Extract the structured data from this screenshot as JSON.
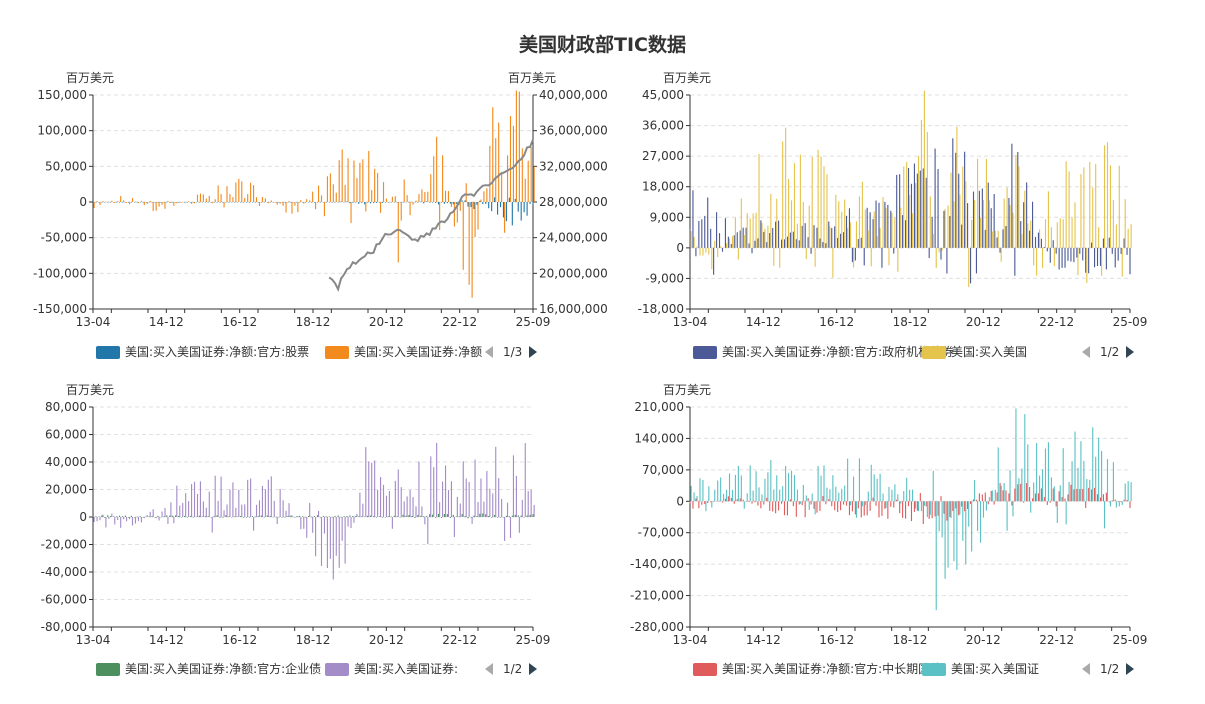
{
  "page_title": "美国财政部TIC数据",
  "chart_data": [
    {
      "type": "bar",
      "ylabel": "百万美元",
      "ylabel_right": "百万美元",
      "ylim": [
        -150000,
        150000
      ],
      "y_ticks": [
        -150000,
        -100000,
        -50000,
        0,
        50000,
        100000,
        150000
      ],
      "ylim_right": [
        16000000,
        40000000
      ],
      "y_ticks_right": [
        16000000,
        20000000,
        24000000,
        28000000,
        32000000,
        36000000,
        40000000
      ],
      "x_tick_labels": [
        "13-04",
        "14-12",
        "16-12",
        "18-12",
        "20-12",
        "22-12",
        "25-09"
      ],
      "x_range": [
        "2013-04",
        "2025-09"
      ],
      "legend": {
        "items": [
          "美国:买入美国证券:净额:官方:股票",
          "美国:买入美国证券:净额"
        ],
        "page": "1/3"
      },
      "series": [
        {
          "name": "美国:买入美国证券:净额:官方:股票",
          "color": "#2277aa",
          "values": {
            "2013-04": 0,
            "2015-06": 0,
            "2018-06": 0,
            "2019-12": 0,
            "2020-12": -3000,
            "2021-09": 0,
            "2022-06": -1000,
            "2023-06": -5000,
            "2024-06": -10000,
            "2025-01": -25000,
            "2025-04": -30000,
            "2025-09": -8000
          }
        },
        {
          "name": "美国:买入美国证券:净额",
          "color": "#f28a1e",
          "values": {
            "2013-04": -8000,
            "2014-03": 10000,
            "2014-12": -15000,
            "2016-12": 22000,
            "2017-06": 30000,
            "2018-12": -20000,
            "2020-03": 70000,
            "2020-12": 60000,
            "2021-06": 45000,
            "2021-12": -90000,
            "2022-06": 25000,
            "2022-12": 105000,
            "2023-06": -30000,
            "2023-12": -120000,
            "2024-06": 100000,
            "2024-12": 130000,
            "2025-06": 115000,
            "2025-09": 60000
          }
        },
        {
          "name": "line",
          "type": "line",
          "axis": "right",
          "color": "#888888",
          "values": {
            "2019-12": 19800000,
            "2020-03": 18500000,
            "2020-06": 20500000,
            "2020-12": 22000000,
            "2021-03": 22500000,
            "2021-06": 24000000,
            "2021-09": 24500000,
            "2021-12": 25000000,
            "2022-03": 24200000,
            "2022-06": 23800000,
            "2022-09": 24200000,
            "2022-12": 25000000,
            "2023-03": 26000000,
            "2023-06": 27000000,
            "2023-09": 28500000,
            "2023-12": 28700000,
            "2024-03": 29500000,
            "2024-06": 30000000,
            "2024-09": 31000000,
            "2024-12": 31500000,
            "2025-03": 32000000,
            "2025-06": 33500000,
            "2025-09": 34800000
          }
        }
      ]
    },
    {
      "type": "bar",
      "ylabel": "百万美元",
      "ylim": [
        -18000,
        45000
      ],
      "y_ticks": [
        -18000,
        -9000,
        0,
        9000,
        18000,
        27000,
        36000,
        45000
      ],
      "x_tick_labels": [
        "13-04",
        "14-12",
        "16-12",
        "18-12",
        "20-12",
        "22-12",
        "25-09"
      ],
      "x_range": [
        "2013-04",
        "2025-09"
      ],
      "legend": {
        "items": [
          "美国:买入美国证券:净额:官方:政府机构债券",
          "美国:买入美国"
        ],
        "page": "1/2"
      },
      "series": [
        {
          "name": "美国:买入美国证券:净额:官方:政府机构债券",
          "color": "#4c5a97",
          "values": {
            "2013-04": 16000,
            "2013-10": 20000,
            "2014-06": 5000,
            "2015-06": 7000,
            "2016-06": 6000,
            "2017-06": 7000,
            "2018-06": 14000,
            "2019-06": 22000,
            "2019-12": 25000,
            "2020-06": 29000,
            "2020-12": 27000,
            "2021-06": 20000,
            "2021-12": 15000,
            "2022-06": 27000,
            "2022-12": 12000,
            "2023-06": -5000,
            "2024-06": -6000,
            "2025-03": -8000,
            "2025-09": -6000
          }
        },
        {
          "name": "美国:买入美国",
          "color": "#e5c44e",
          "values": {
            "2013-04": 5000,
            "2013-10": -9000,
            "2014-06": 5000,
            "2014-12": 20000,
            "2015-06": 27000,
            "2016-06": 28000,
            "2017-06": 15000,
            "2018-06": 15000,
            "2019-06": 28000,
            "2019-12": 38000,
            "2020-03": -12000,
            "2020-09": 39000,
            "2021-06": 30000,
            "2021-12": 20000,
            "2022-06": 23000,
            "2022-12": 15000,
            "2023-06": 20000,
            "2024-06": 24000,
            "2025-03": 30000,
            "2025-09": 15000
          }
        }
      ]
    },
    {
      "type": "bar",
      "ylabel": "百万美元",
      "ylim": [
        -80000,
        80000
      ],
      "y_ticks": [
        -80000,
        -60000,
        -40000,
        -20000,
        0,
        20000,
        40000,
        60000,
        80000
      ],
      "x_tick_labels": [
        "13-04",
        "14-12",
        "16-12",
        "18-12",
        "20-12",
        "22-12",
        "25-09"
      ],
      "x_range": [
        "2013-04",
        "2025-09"
      ],
      "legend": {
        "items": [
          "美国:买入美国证券:净额:官方:企业债",
          "美国:买入美国证券:"
        ],
        "page": "1/2"
      },
      "series": [
        {
          "name": "美国:买入美国证券:净额:官方:企业债",
          "color": "#4d8f5e",
          "values": {
            "2013-04": 1000,
            "2015-06": 1000,
            "2018-06": 1000,
            "2021-06": 1000,
            "2023-06": 2000,
            "2025-09": 2000
          }
        },
        {
          "name": "美国:买入美国证券:",
          "color": "#a48cc9",
          "values": {
            "2013-04": -5000,
            "2014-06": -8000,
            "2015-06": 20000,
            "2016-06": 25000,
            "2017-06": 22000,
            "2018-06": 28000,
            "2019-06": -25000,
            "2019-12": -30000,
            "2020-03": -55000,
            "2020-06": -30000,
            "2020-12": 40000,
            "2021-06": 25000,
            "2021-12": 30000,
            "2022-06": 35000,
            "2022-12": 45000,
            "2023-06": 40000,
            "2024-06": 40000,
            "2024-12": 38000,
            "2025-03": 55000,
            "2025-09": 38000
          }
        }
      ]
    },
    {
      "type": "bar",
      "ylabel": "百万美元",
      "ylim": [
        -280000,
        210000
      ],
      "y_ticks": [
        -280000,
        -210000,
        -140000,
        -70000,
        0,
        70000,
        140000,
        210000
      ],
      "x_tick_labels": [
        "13-04",
        "14-12",
        "16-12",
        "18-12",
        "20-12",
        "22-12",
        "25-09"
      ],
      "x_range": [
        "2013-04",
        "2025-09"
      ],
      "legend": {
        "items": [
          "美国:买入美国证券:净额:官方:中长期国债",
          "美国:买入美国证"
        ],
        "page": "1/2"
      },
      "series": [
        {
          "name": "美国:买入美国证券:净额:官方:中长期国债",
          "color": "#e05c5c",
          "values": {
            "2013-04": -20000,
            "2014-06": 15000,
            "2015-06": -20000,
            "2016-06": -30000,
            "2017-06": -25000,
            "2018-06": -30000,
            "2019-06": -35000,
            "2019-12": -50000,
            "2020-06": -40000,
            "2020-12": -30000,
            "2021-06": 20000,
            "2021-12": 30000,
            "2022-06": 40000,
            "2022-12": 30000,
            "2023-06": 25000,
            "2024-06": 35000,
            "2024-12": 20000,
            "2025-09": -15000
          }
        },
        {
          "name": "美国:买入美国证",
          "color": "#5cc1c4",
          "values": {
            "2013-04": 40000,
            "2014-06": 60000,
            "2015-06": 80000,
            "2016-06": 50000,
            "2017-06": 80000,
            "2018-06": 70000,
            "2019-06": 60000,
            "2019-12": 70000,
            "2020-03": -250000,
            "2020-06": -150000,
            "2021-06": -80000,
            "2021-12": 100000,
            "2022-06": 180000,
            "2022-12": 130000,
            "2023-06": 100000,
            "2024-06": 130000,
            "2024-12": 125000,
            "2025-09": 50000
          }
        }
      ]
    }
  ]
}
